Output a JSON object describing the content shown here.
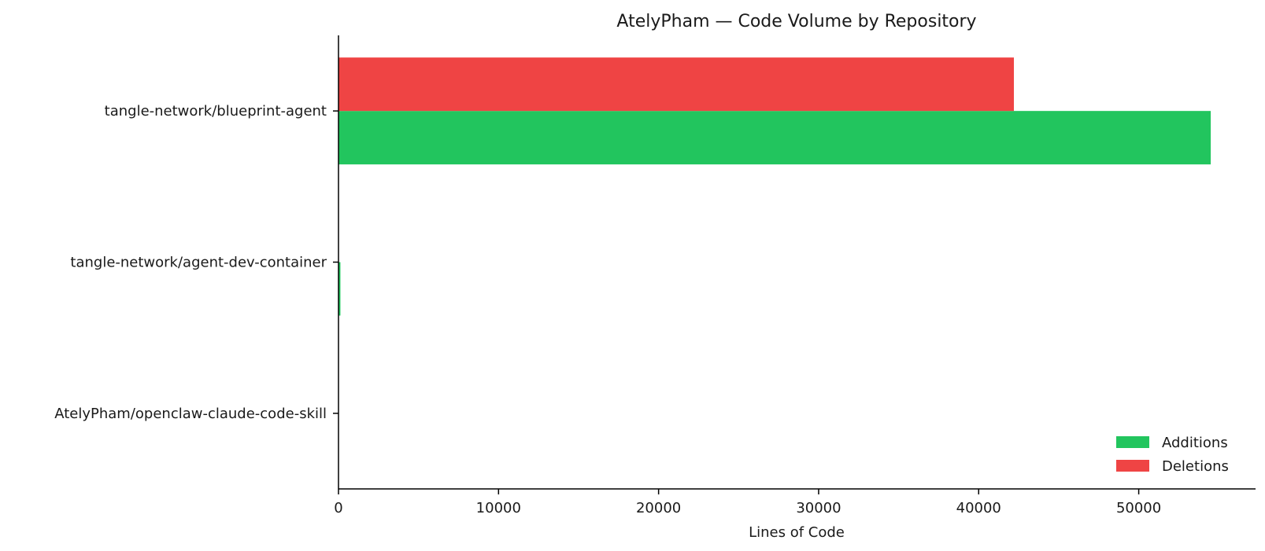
{
  "chart_data": {
    "type": "bar",
    "orientation": "horizontal",
    "title": "AtelyPham — Code Volume by Repository",
    "xlabel": "Lines of Code",
    "ylabel": "",
    "categories": [
      "tangle-network/blueprint-agent",
      "tangle-network/agent-dev-container",
      "AtelyPham/openclaw-claude-code-skill"
    ],
    "series": [
      {
        "name": "Additions",
        "color": "#22c55e",
        "values": [
          54500,
          120,
          0
        ]
      },
      {
        "name": "Deletions",
        "color": "#ef4444",
        "values": [
          42200,
          0,
          0
        ]
      }
    ],
    "xlim": [
      0,
      57300
    ],
    "xticks": [
      0,
      10000,
      20000,
      30000,
      40000,
      50000
    ],
    "grid": false,
    "legend_position": "bottom-right"
  }
}
